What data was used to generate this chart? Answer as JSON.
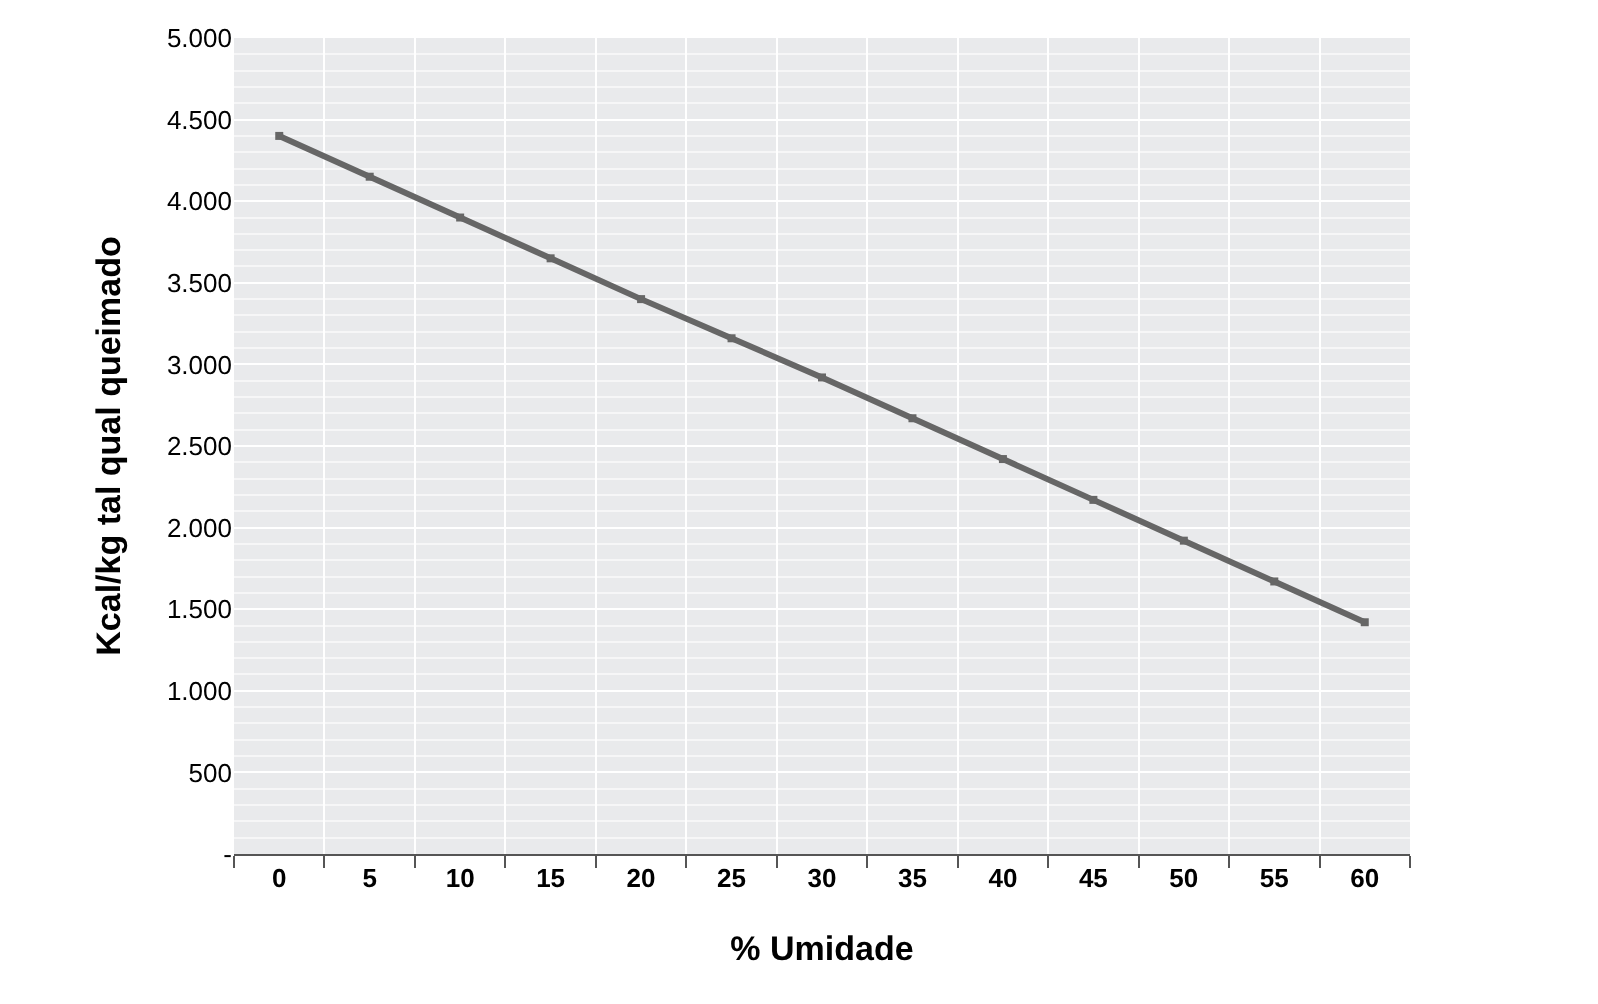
{
  "chart_data": {
    "type": "line",
    "xlabel": "% Umidade",
    "ylabel": "Kcal/kg tal qual queimado",
    "categories": [
      "0",
      "5",
      "10",
      "15",
      "20",
      "25",
      "30",
      "35",
      "40",
      "45",
      "50",
      "55",
      "60"
    ],
    "series": [
      {
        "color": "#666666",
        "values": [
          4400,
          4150,
          3900,
          3650,
          3400,
          3160,
          2920,
          2670,
          2420,
          2170,
          1920,
          1670,
          1420
        ]
      }
    ],
    "ylim": [
      0,
      5000
    ],
    "yticks": [
      {
        "value": 0,
        "label": "-"
      },
      500,
      {
        "value": 1000,
        "label": "1.000"
      },
      {
        "value": 1500,
        "label": "1.500"
      },
      {
        "value": 2000,
        "label": "2.000"
      },
      {
        "value": 2500,
        "label": "2.500"
      },
      {
        "value": 3000,
        "label": "3.000"
      },
      {
        "value": 3500,
        "label": "3.500"
      },
      {
        "value": 4000,
        "label": "4.000"
      },
      {
        "value": 4500,
        "label": "4.500"
      },
      {
        "value": 5000,
        "label": "5.000"
      }
    ],
    "grid": true,
    "marker": "square",
    "line_style": "solid"
  }
}
